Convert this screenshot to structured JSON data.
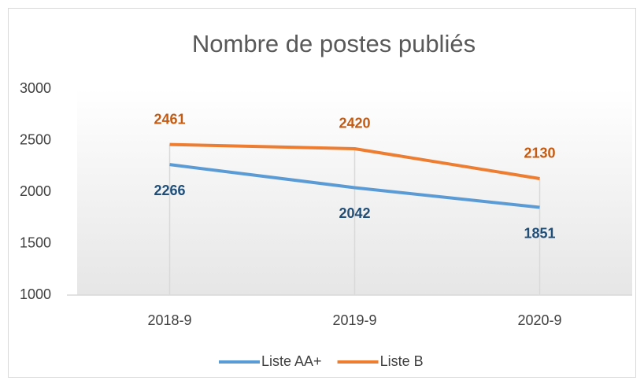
{
  "chart_data": {
    "type": "line",
    "title": "Nombre de postes publiés",
    "categories": [
      "2018-9",
      "2019-9",
      "2020-9"
    ],
    "series": [
      {
        "name": "Liste AA+",
        "color": "#5b9bd5",
        "values": [
          2266,
          2042,
          1851
        ]
      },
      {
        "name": "Liste B",
        "color": "#ed7d31",
        "values": [
          2461,
          2420,
          2130
        ]
      }
    ],
    "ylim": [
      1000,
      3000
    ],
    "yticks": [
      1000,
      1500,
      2000,
      2500,
      3000
    ],
    "grid": false,
    "legend": "bottom"
  }
}
